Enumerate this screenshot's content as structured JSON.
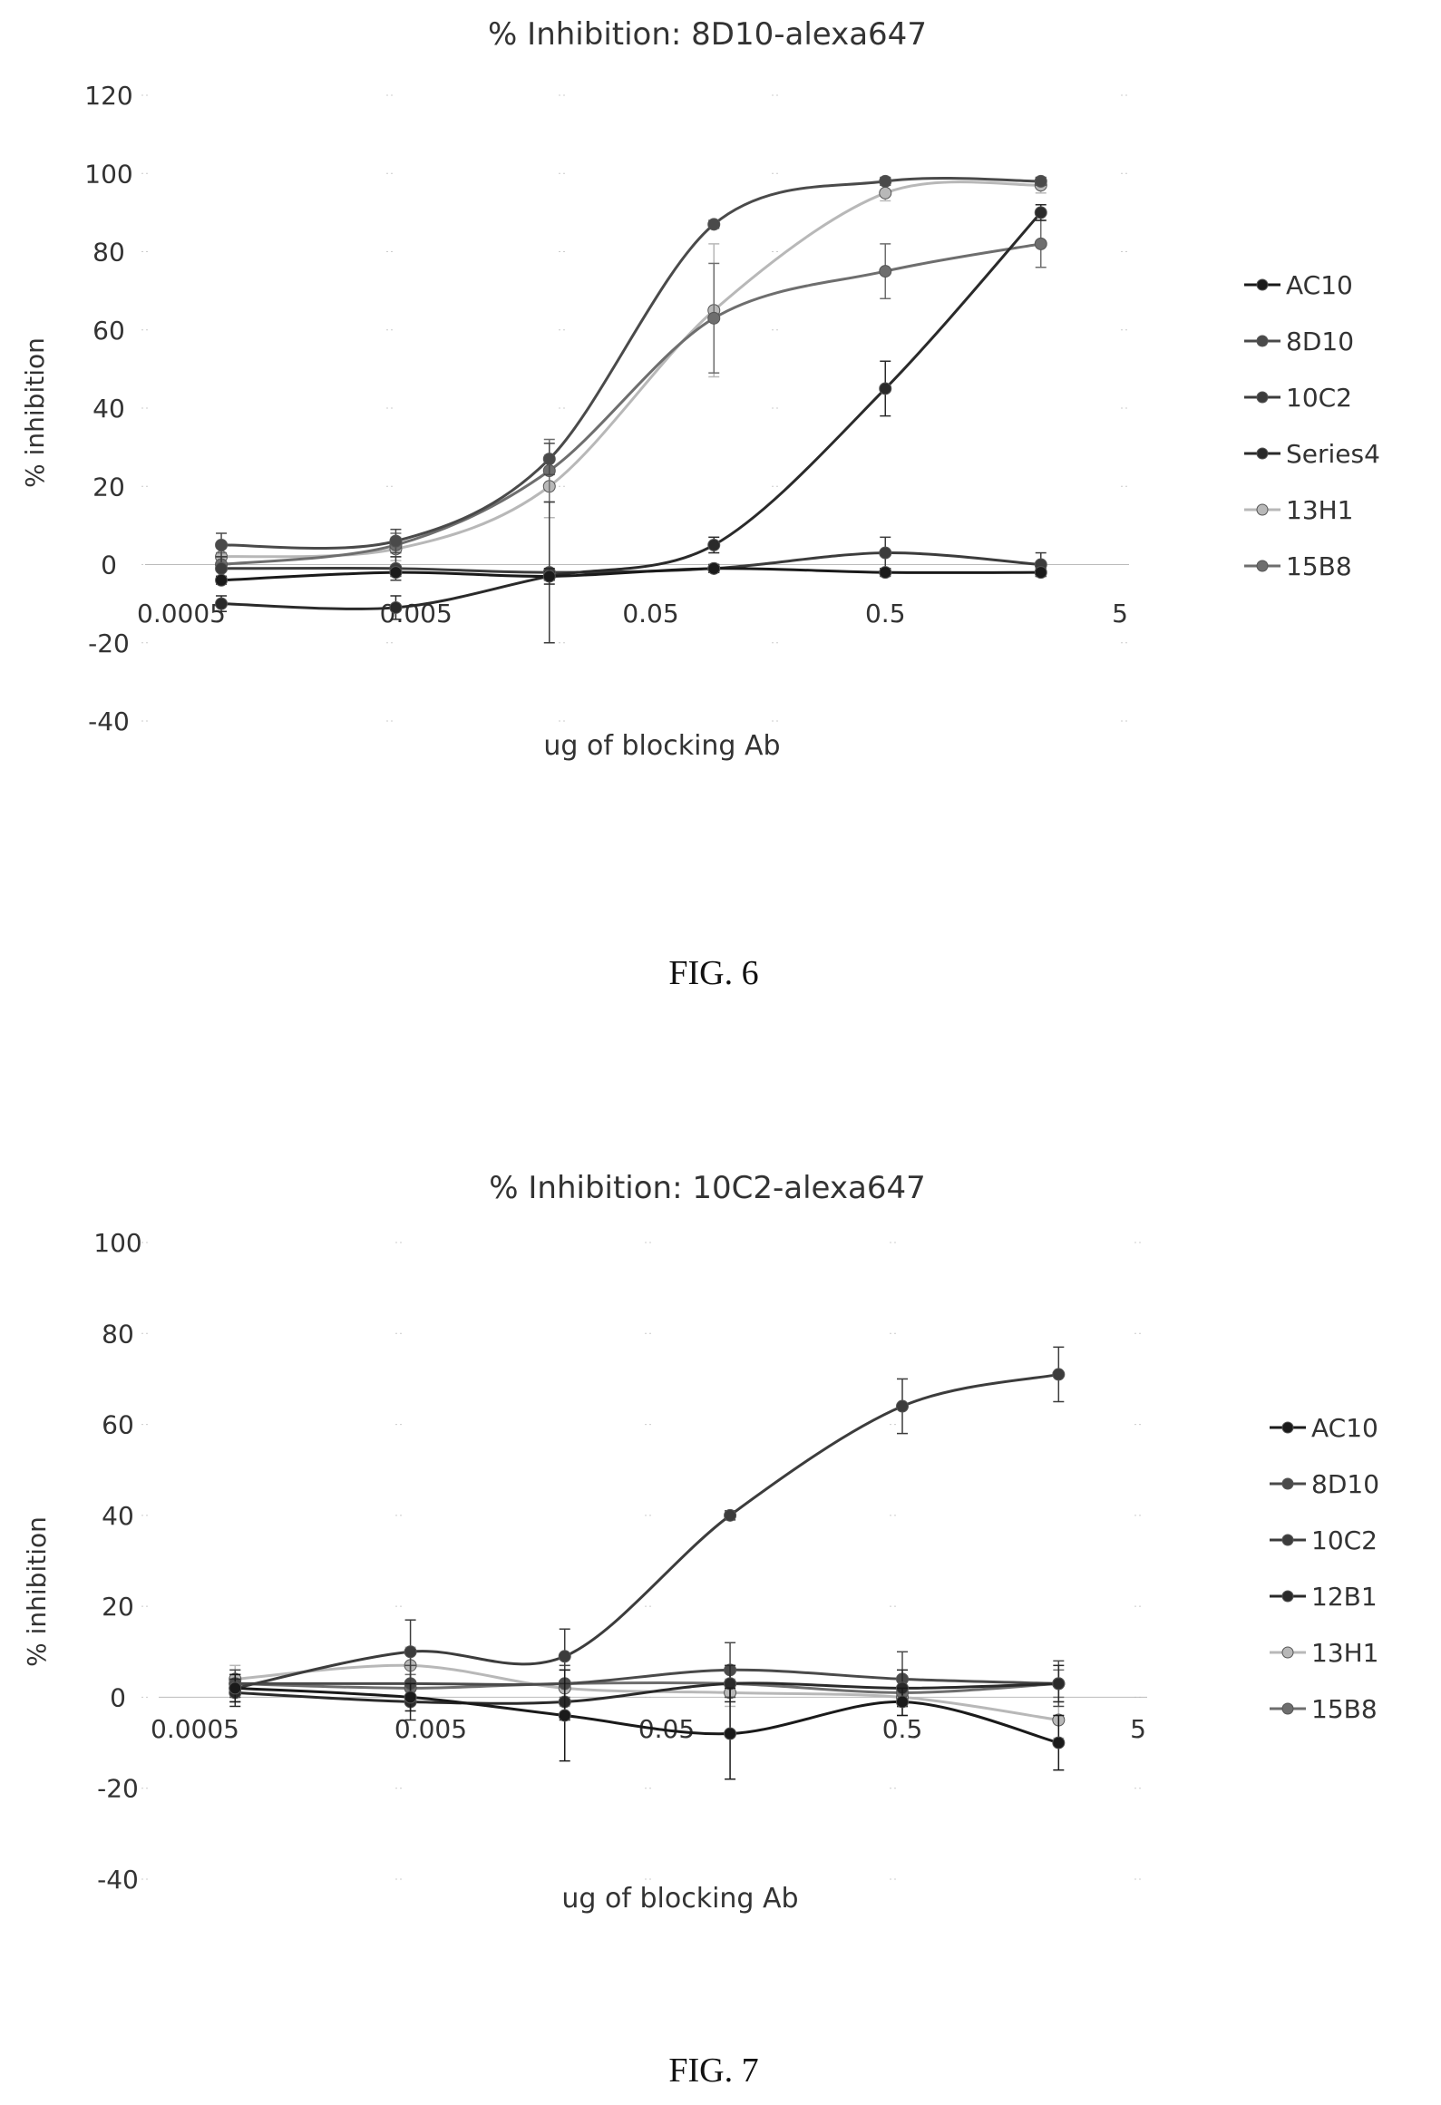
{
  "figures": [
    {
      "caption": "FIG. 6",
      "chart_data": {
        "type": "line",
        "title": "% Inhibition: 8D10-alexa647",
        "xlabel": "ug of blocking Ab",
        "ylabel": "% inhibition",
        "xscale": "log",
        "x_tick_labels": [
          "0.0005",
          "0.005",
          "0.05",
          "0.5",
          "5"
        ],
        "x_tick_values": [
          0.0005,
          0.005,
          0.05,
          0.5,
          5
        ],
        "y_tick_labels": [
          "-40",
          "-20",
          "0",
          "20",
          "40",
          "60",
          "80",
          "100",
          "120"
        ],
        "ylim": [
          -40,
          120
        ],
        "xlim": [
          0.0005,
          5
        ],
        "grid": "sparse dotted",
        "legend_position": "right",
        "x": [
          0.00074,
          0.0041,
          0.0185,
          0.093,
          0.5,
          2.3
        ],
        "series": [
          {
            "name": "AC10",
            "color": "#1a1a1a",
            "values": [
              -4,
              -2,
              -3,
              -1,
              -2,
              -2
            ],
            "errors": [
              1,
              1,
              1,
              1,
              1,
              1
            ]
          },
          {
            "name": "8D10",
            "color": "#4a4a4a",
            "values": [
              5,
              6,
              27,
              87,
              98,
              98
            ],
            "errors": [
              3,
              3,
              4,
              1,
              1,
              1
            ]
          },
          {
            "name": "10C2",
            "color": "#3c3c3c",
            "values": [
              -1,
              -1,
              -2,
              -1,
              3,
              0
            ],
            "errors": [
              3,
              3,
              18,
              1,
              4,
              3
            ]
          },
          {
            "name": "Series4",
            "color": "#2a2a2a",
            "values": [
              -10,
              -11,
              -3,
              5,
              45,
              90
            ],
            "errors": [
              2,
              3,
              2,
              2,
              7,
              2
            ]
          },
          {
            "name": "13H1",
            "color": "#b8b8b8",
            "values": [
              2,
              4,
              20,
              65,
              95,
              97
            ],
            "errors": [
              3,
              3,
              8,
              17,
              2,
              2
            ]
          },
          {
            "name": "15B8",
            "color": "#6e6e6e",
            "values": [
              0,
              5,
              24,
              63,
              75,
              82
            ],
            "errors": [
              3,
              3,
              8,
              14,
              7,
              6
            ]
          }
        ]
      }
    },
    {
      "caption": "FIG. 7",
      "chart_data": {
        "type": "line",
        "title": "% Inhibition: 10C2-alexa647",
        "xlabel": "ug of blocking Ab",
        "ylabel": "% inhibition",
        "xscale": "log",
        "x_tick_labels": [
          "0.0005",
          "0.005",
          "0.05",
          "0.5",
          "5"
        ],
        "x_tick_values": [
          0.0005,
          0.005,
          0.05,
          0.5,
          5
        ],
        "y_tick_labels": [
          "-40",
          "-20",
          "0",
          "20",
          "40",
          "60",
          "80",
          "100"
        ],
        "ylim": [
          -40,
          100
        ],
        "xlim": [
          0.0005,
          5
        ],
        "grid": "sparse dotted",
        "legend_position": "right",
        "x": [
          0.00074,
          0.0041,
          0.0185,
          0.093,
          0.5,
          2.3
        ],
        "series": [
          {
            "name": "AC10",
            "color": "#1a1a1a",
            "values": [
              2,
              0,
              -4,
              -8,
              -1,
              -10
            ],
            "errors": [
              3,
              3,
              10,
              10,
              3,
              6
            ]
          },
          {
            "name": "8D10",
            "color": "#4a4a4a",
            "values": [
              3,
              3,
              3,
              6,
              4,
              3
            ],
            "errors": [
              3,
              4,
              4,
              6,
              6,
              5
            ]
          },
          {
            "name": "10C2",
            "color": "#3c3c3c",
            "values": [
              2,
              10,
              9,
              40,
              64,
              71
            ],
            "errors": [
              3,
              7,
              6,
              1,
              6,
              6
            ]
          },
          {
            "name": "12B1",
            "color": "#2a2a2a",
            "values": [
              1,
              -1,
              -1,
              3,
              2,
              3
            ],
            "errors": [
              3,
              4,
              4,
              4,
              4,
              4
            ]
          },
          {
            "name": "13H1",
            "color": "#b8b8b8",
            "values": [
              4,
              7,
              2,
              1,
              0,
              -5
            ],
            "errors": [
              3,
              4,
              4,
              3,
              4,
              4
            ]
          },
          {
            "name": "15B8",
            "color": "#6e6e6e",
            "values": [
              3,
              2,
              3,
              3,
              1,
              3
            ],
            "errors": [
              3,
              3,
              3,
              3,
              3,
              3
            ]
          }
        ]
      }
    }
  ]
}
